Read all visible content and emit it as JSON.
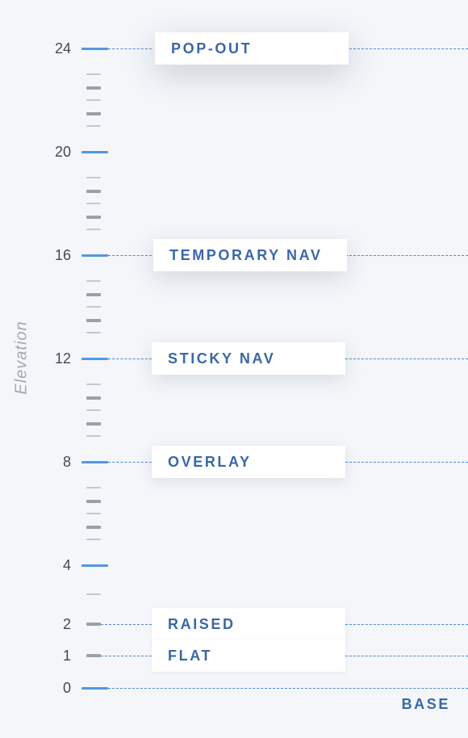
{
  "axis": {
    "title": "Elevation",
    "min": 0,
    "max": 24,
    "labeled_ticks": [
      0,
      1,
      2,
      4,
      8,
      12,
      16,
      20,
      24
    ],
    "major_ticks": [
      0,
      4,
      8,
      12,
      16,
      20,
      24
    ],
    "minor_ticks": [
      3,
      5,
      5.5,
      6,
      6.5,
      7,
      9,
      9.5,
      10,
      10.5,
      11,
      13,
      13.5,
      14,
      14.5,
      15,
      17,
      17.5,
      18,
      18.5,
      19,
      21,
      21.5,
      22,
      22.5,
      23
    ]
  },
  "levels": [
    {
      "name": "POP-OUT",
      "value": 24,
      "shadow": 24
    },
    {
      "name": "TEMPORARY NAV",
      "value": 16,
      "shadow": 16
    },
    {
      "name": "STICKY NAV",
      "value": 12,
      "shadow": 12
    },
    {
      "name": "OVERLAY",
      "value": 8,
      "shadow": 8
    },
    {
      "name": "RAISED",
      "value": 2,
      "shadow": 2
    },
    {
      "name": "FLAT",
      "value": 1,
      "shadow": 1
    }
  ],
  "base_label": "BASE",
  "colors": {
    "accent": "#5596e0",
    "label_text": "#3a67a8",
    "background": "#f4f6fa",
    "card": "#ffffff"
  }
}
